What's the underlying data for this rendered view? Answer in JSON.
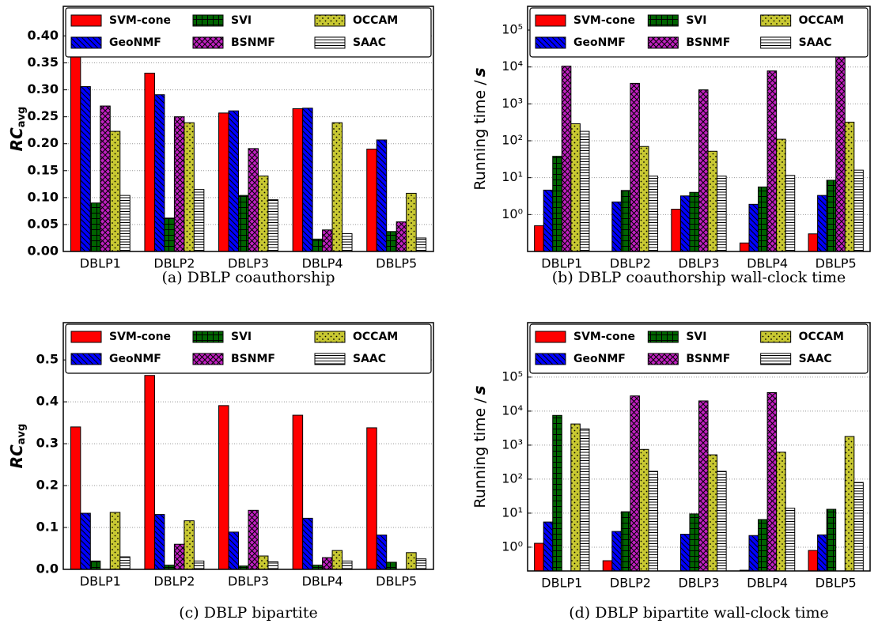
{
  "chart_data": [
    {
      "type": "bar",
      "caption": "(a) DBLP coauthorship",
      "ylabel": "RC",
      "ylabel_sub": "avg",
      "log": false,
      "grid": true,
      "legend": "top",
      "categories": [
        "DBLP1",
        "DBLP2",
        "DBLP3",
        "DBLP4",
        "DBLP5"
      ],
      "ylim": [
        0,
        0.455
      ],
      "yticks": [
        {
          "value": 0,
          "label": "0.00"
        },
        {
          "value": 0.05,
          "label": "0.05"
        },
        {
          "value": 0.1,
          "label": "0.10"
        },
        {
          "value": 0.15,
          "label": "0.15"
        },
        {
          "value": 0.2,
          "label": "0.20"
        },
        {
          "value": 0.25,
          "label": "0.25"
        },
        {
          "value": 0.3,
          "label": "0.30"
        },
        {
          "value": 0.35,
          "label": "0.35"
        },
        {
          "value": 0.4,
          "label": "0.40"
        }
      ],
      "series": [
        {
          "name": "SVM-cone",
          "color": "#ff0000",
          "hatch": "none",
          "values": [
            0.368,
            0.331,
            0.257,
            0.265,
            0.19
          ]
        },
        {
          "name": "GeoNMF",
          "color": "#0000ff",
          "hatch": "diag",
          "values": [
            0.306,
            0.291,
            0.261,
            0.266,
            0.207
          ]
        },
        {
          "name": "SVI",
          "color": "#006400",
          "hatch": "grid",
          "values": [
            0.09,
            0.062,
            0.104,
            0.023,
            0.037
          ]
        },
        {
          "name": "BSNMF",
          "color": "#c020c0",
          "hatch": "cross",
          "values": [
            0.27,
            0.25,
            0.191,
            0.04,
            0.055
          ]
        },
        {
          "name": "OCCAM",
          "color": "#c8c832",
          "hatch": "dots",
          "values": [
            0.223,
            0.239,
            0.14,
            0.239,
            0.108
          ]
        },
        {
          "name": "SAAC",
          "color": "#ffffff",
          "hatch": "horiz",
          "values": [
            0.104,
            0.115,
            0.096,
            0.033,
            0.025
          ]
        }
      ]
    },
    {
      "type": "bar",
      "caption": "(b) DBLP coauthorship wall-clock time",
      "ylabel": "Running time /",
      "ylabel_unit": "s",
      "log": true,
      "grid": true,
      "legend": "top",
      "categories": [
        "DBLP1",
        "DBLP2",
        "DBLP3",
        "DBLP4",
        "DBLP5"
      ],
      "ylim": [
        0.1,
        440000
      ],
      "yticks": [
        {
          "value": 1,
          "label": "10⁰"
        },
        {
          "value": 10,
          "label": "10¹"
        },
        {
          "value": 100,
          "label": "10²"
        },
        {
          "value": 1000,
          "label": "10³"
        },
        {
          "value": 10000,
          "label": "10⁴"
        },
        {
          "value": 100000,
          "label": "10⁵"
        }
      ],
      "series": [
        {
          "name": "SVM-cone",
          "color": "#ff0000",
          "hatch": "none",
          "values": [
            0.5,
            null,
            1.4,
            0.17,
            0.3
          ]
        },
        {
          "name": "GeoNMF",
          "color": "#0000ff",
          "hatch": "diag",
          "values": [
            4.6,
            2.2,
            3.2,
            1.9,
            3.3
          ]
        },
        {
          "name": "SVI",
          "color": "#006400",
          "hatch": "grid",
          "values": [
            38,
            4.5,
            4,
            5.6,
            8.5
          ]
        },
        {
          "name": "BSNMF",
          "color": "#c020c0",
          "hatch": "cross",
          "values": [
            10500,
            3600,
            2400,
            7800,
            20000
          ]
        },
        {
          "name": "OCCAM",
          "color": "#c8c832",
          "hatch": "dots",
          "values": [
            290,
            70,
            52,
            110,
            320
          ]
        },
        {
          "name": "SAAC",
          "color": "#ffffff",
          "hatch": "horiz",
          "values": [
            180,
            11,
            11,
            11.5,
            16
          ]
        }
      ]
    },
    {
      "type": "bar",
      "caption": "(c) DBLP bipartite",
      "ylabel": "RC",
      "ylabel_sub": "avg",
      "log": false,
      "grid": true,
      "legend": "top",
      "categories": [
        "DBLP1",
        "DBLP2",
        "DBLP3",
        "DBLP4",
        "DBLP5"
      ],
      "ylim": [
        0,
        0.589
      ],
      "yticks": [
        {
          "value": 0,
          "label": "0.0"
        },
        0.1,
        0.2,
        0.3,
        0.4,
        0.5
      ],
      "series": [
        {
          "name": "SVM-cone",
          "color": "#ff0000",
          "hatch": "none",
          "values": [
            0.34,
            0.463,
            0.391,
            0.368,
            0.338
          ]
        },
        {
          "name": "GeoNMF",
          "color": "#0000ff",
          "hatch": "diag",
          "values": [
            0.134,
            0.131,
            0.089,
            0.122,
            0.082
          ]
        },
        {
          "name": "SVI",
          "color": "#006400",
          "hatch": "grid",
          "values": [
            0.02,
            0.01,
            0.008,
            0.01,
            0.017
          ]
        },
        {
          "name": "BSNMF",
          "color": "#c020c0",
          "hatch": "cross",
          "values": [
            null,
            0.06,
            0.141,
            0.028,
            null
          ]
        },
        {
          "name": "OCCAM",
          "color": "#c8c832",
          "hatch": "dots",
          "values": [
            0.136,
            0.116,
            0.032,
            0.045,
            0.04
          ]
        },
        {
          "name": "SAAC",
          "color": "#ffffff",
          "hatch": "horiz",
          "values": [
            0.03,
            0.02,
            0.018,
            0.02,
            0.025
          ]
        }
      ]
    },
    {
      "type": "bar",
      "caption": "(d) DBLP bipartite wall-clock time",
      "ylabel": "Running time /",
      "ylabel_unit": "s",
      "log": true,
      "grid": true,
      "legend": "top",
      "categories": [
        "DBLP1",
        "DBLP2",
        "DBLP3",
        "DBLP4",
        "DBLP5"
      ],
      "ylim": [
        0.2,
        4000000
      ],
      "yticks": [
        {
          "value": 1,
          "label": "10⁰"
        },
        {
          "value": 10,
          "label": "10¹"
        },
        {
          "value": 100,
          "label": "10²"
        },
        {
          "value": 1000,
          "label": "10³"
        },
        {
          "value": 10000,
          "label": "10⁴"
        },
        {
          "value": 100000,
          "label": "10⁵"
        }
      ],
      "series": [
        {
          "name": "SVM-cone",
          "color": "#ff0000",
          "hatch": "none",
          "values": [
            1.3,
            0.4,
            null,
            0.21,
            0.8
          ]
        },
        {
          "name": "GeoNMF",
          "color": "#0000ff",
          "hatch": "diag",
          "values": [
            5.5,
            2.9,
            2.4,
            2.2,
            2.3
          ]
        },
        {
          "name": "SVI",
          "color": "#006400",
          "hatch": "grid",
          "values": [
            7500,
            11,
            9.5,
            6.5,
            13
          ]
        },
        {
          "name": "BSNMF",
          "color": "#c020c0",
          "hatch": "cross",
          "values": [
            null,
            28000,
            20000,
            35000,
            null
          ]
        },
        {
          "name": "OCCAM",
          "color": "#c8c832",
          "hatch": "dots",
          "values": [
            4200,
            750,
            520,
            620,
            1800
          ]
        },
        {
          "name": "SAAC",
          "color": "#ffffff",
          "hatch": "horiz",
          "values": [
            3000,
            170,
            170,
            14,
            80
          ]
        }
      ]
    }
  ]
}
